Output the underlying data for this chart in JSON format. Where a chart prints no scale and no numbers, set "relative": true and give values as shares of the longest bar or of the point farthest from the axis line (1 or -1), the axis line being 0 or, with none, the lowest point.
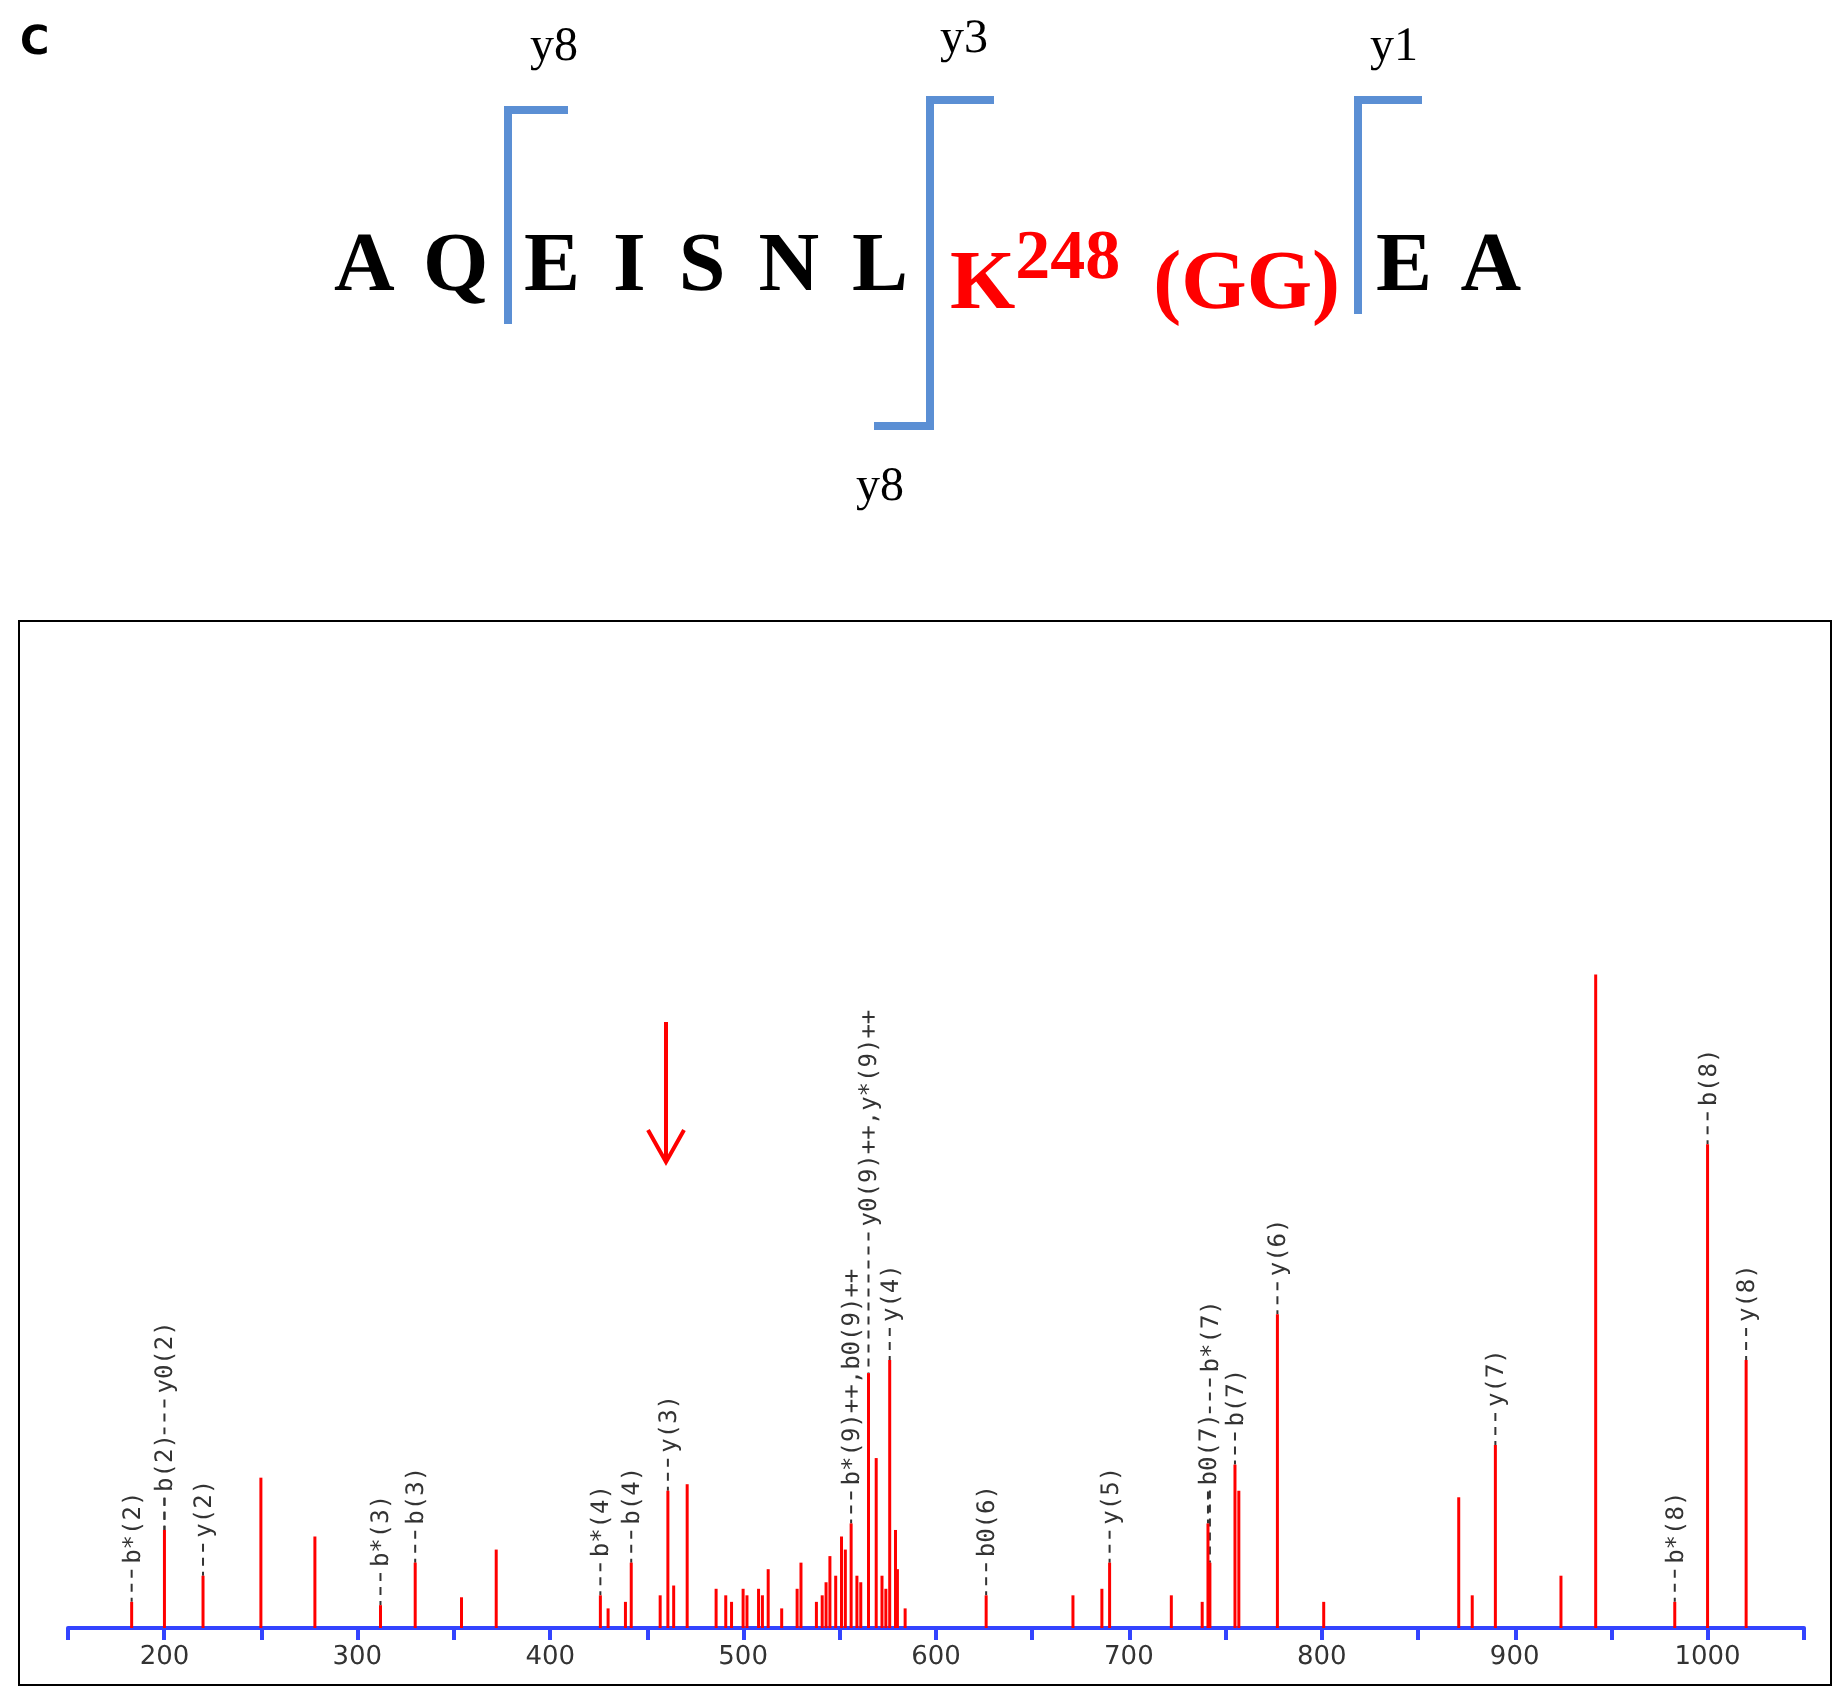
{
  "chart_data": {
    "type": "bar",
    "relative": true,
    "color": "#ff0000",
    "x": [
      183,
      200,
      220,
      250,
      278,
      312,
      330,
      354,
      372,
      426,
      430,
      439,
      442,
      457,
      461,
      464,
      471,
      486,
      491,
      494,
      500,
      502,
      508,
      510,
      513,
      520,
      528,
      530,
      538,
      541,
      543,
      545,
      548,
      551,
      553,
      556,
      559,
      561,
      565,
      569,
      572,
      574,
      576,
      579,
      580,
      584,
      626,
      671,
      686,
      690,
      722,
      738,
      741,
      742,
      755,
      757,
      777,
      801,
      871,
      878,
      890,
      924,
      942,
      983,
      1000,
      1020
    ],
    "values": [
      0.04,
      0.15,
      0.08,
      0.23,
      0.14,
      0.035,
      0.1,
      0.047,
      0.12,
      0.05,
      0.03,
      0.04,
      0.1,
      0.05,
      0.21,
      0.065,
      0.22,
      0.06,
      0.05,
      0.04,
      0.06,
      0.05,
      0.06,
      0.05,
      0.09,
      0.03,
      0.06,
      0.1,
      0.04,
      0.05,
      0.07,
      0.11,
      0.08,
      0.14,
      0.12,
      0.16,
      0.08,
      0.07,
      0.39,
      0.26,
      0.08,
      0.06,
      0.41,
      0.15,
      0.09,
      0.03,
      0.05,
      0.05,
      0.06,
      0.1,
      0.05,
      0.04,
      0.16,
      0.1,
      0.25,
      0.21,
      0.48,
      0.04,
      0.2,
      0.05,
      0.28,
      0.08,
      1,
      0.04,
      0.74,
      0.41
    ],
    "xlim": [
      150,
      1050
    ],
    "xticks": [
      {
        "value": 150,
        "label": null
      },
      200,
      {
        "value": 250,
        "label": null
      },
      300,
      {
        "value": 350,
        "label": null
      },
      400,
      {
        "value": 450,
        "label": null
      },
      500,
      {
        "value": 550,
        "label": null
      },
      600,
      {
        "value": 650,
        "label": null
      },
      700,
      {
        "value": 750,
        "label": null
      },
      800,
      {
        "value": 850,
        "label": null
      },
      900,
      {
        "value": 950,
        "label": null
      },
      1000,
      {
        "value": 1050,
        "label": null
      }
    ],
    "tick_labels": "x",
    "annotations": [
      "C",
      "y8",
      "y3",
      "y1",
      "A Q",
      "E I S N L",
      "K$^{248}$ (GG)",
      "E A",
      "y8",
      {
        "text": "b*(2)",
        "x": 183,
        "y": 0.04
      },
      {
        "text": "b(2)",
        "x": 200,
        "y": 0.15
      },
      {
        "text": "y0(2)",
        "x": 200,
        "y": 0.15
      },
      {
        "text": "y(2)",
        "x": 220,
        "y": 0.08
      },
      {
        "text": "b*(3)",
        "x": 312,
        "y": 0.035
      },
      {
        "text": "b(3)",
        "x": 330,
        "y": 0.1
      },
      {
        "text": "b*(4)",
        "x": 426,
        "y": 0.05
      },
      {
        "text": "b(4)",
        "x": 442,
        "y": 0.1
      },
      {
        "text": "y(3)",
        "x": 461,
        "y": 0.21
      },
      {
        "text": "b*(9)++,b0(9)++",
        "x": 556,
        "y": 0.16
      },
      {
        "text": "y0(9)++,y*(9)++",
        "x": 565,
        "y": 0.39
      },
      {
        "text": "y(4)",
        "x": 576,
        "y": 0.41
      },
      {
        "text": "b0(6)",
        "x": 626,
        "y": 0.05
      },
      {
        "text": "y(5)",
        "x": 690,
        "y": 0.1
      },
      {
        "text": "b0(7)",
        "x": 741,
        "y": 0.16
      },
      {
        "text": "b*(7)",
        "x": 742,
        "y": 0.1
      },
      {
        "text": "b(7)",
        "x": 755,
        "y": 0.25
      },
      {
        "text": "y(6)",
        "x": 777,
        "y": 0.48
      },
      {
        "text": "y(7)",
        "x": 890,
        "y": 0.28
      },
      {
        "text": "b*(8)",
        "x": 983,
        "y": 0.04
      },
      {
        "text": "b(8)",
        "x": 1000,
        "y": 0.74
      },
      {
        "text": "y(8)",
        "x": 1020,
        "y": 0.41
      }
    ]
  }
}
